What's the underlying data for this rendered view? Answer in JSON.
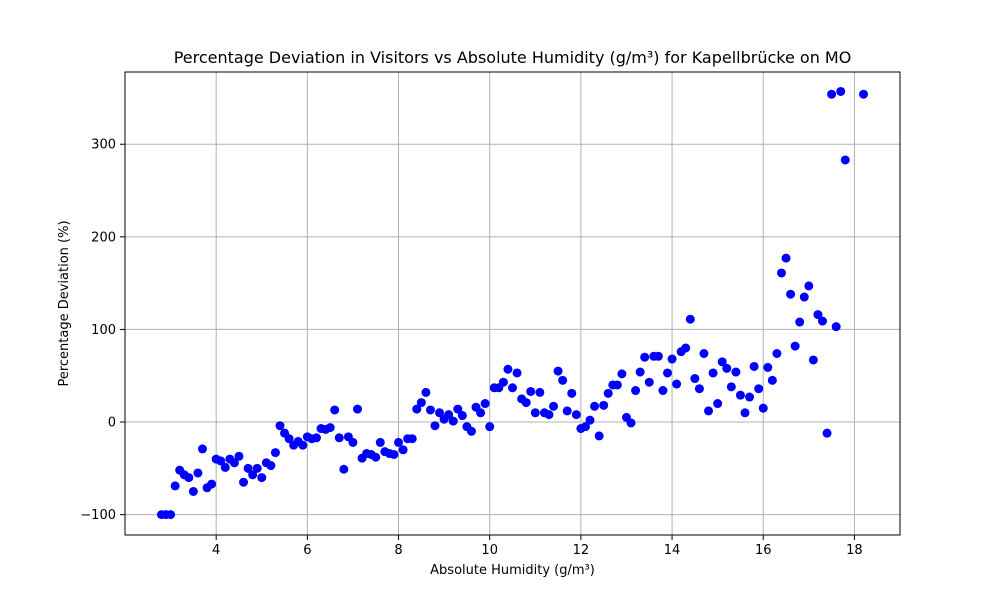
{
  "chart_data": {
    "type": "scatter",
    "title": "Percentage Deviation in Visitors vs Absolute Humidity (g/m³) for Kapellbrücke on MO",
    "xlabel": "Absolute Humidity (g/m³)",
    "ylabel": "Percentage Deviation (%)",
    "xlim": [
      2.0,
      19.0
    ],
    "ylim": [
      -122,
      378
    ],
    "xticks": [
      4,
      6,
      8,
      10,
      12,
      14,
      16,
      18
    ],
    "yticks": [
      -100,
      0,
      100,
      200,
      300
    ],
    "grid": true,
    "point_color": "#0000ff",
    "x": [
      2.8,
      2.9,
      3.0,
      3.1,
      3.2,
      3.3,
      3.4,
      3.5,
      3.6,
      3.7,
      3.8,
      3.9,
      4.0,
      4.1,
      4.2,
      4.3,
      4.4,
      4.5,
      4.6,
      4.7,
      4.8,
      4.9,
      5.0,
      5.1,
      5.2,
      5.3,
      5.4,
      5.5,
      5.6,
      5.7,
      5.8,
      5.9,
      6.0,
      6.1,
      6.2,
      6.3,
      6.4,
      6.5,
      6.6,
      6.7,
      6.8,
      6.9,
      7.0,
      7.1,
      7.2,
      7.3,
      7.4,
      7.5,
      7.6,
      7.7,
      7.8,
      7.9,
      8.0,
      8.1,
      8.2,
      8.3,
      8.4,
      8.5,
      8.6,
      8.7,
      8.8,
      8.9,
      9.0,
      9.1,
      9.2,
      9.3,
      9.4,
      9.5,
      9.6,
      9.7,
      9.8,
      9.9,
      10.0,
      10.1,
      10.2,
      10.3,
      10.4,
      10.5,
      10.6,
      10.7,
      10.8,
      10.9,
      11.0,
      11.1,
      11.2,
      11.3,
      11.4,
      11.5,
      11.6,
      11.7,
      11.8,
      11.9,
      12.0,
      12.1,
      12.2,
      12.3,
      12.4,
      12.5,
      12.6,
      12.7,
      12.8,
      12.9,
      13.0,
      13.1,
      13.2,
      13.3,
      13.4,
      13.5,
      13.6,
      13.7,
      13.8,
      13.9,
      14.0,
      14.1,
      14.2,
      14.3,
      14.4,
      14.5,
      14.6,
      14.7,
      14.8,
      14.9,
      15.0,
      15.1,
      15.2,
      15.3,
      15.4,
      15.5,
      15.6,
      15.7,
      15.8,
      15.9,
      16.0,
      16.1,
      16.2,
      16.3,
      16.4,
      16.5,
      16.6,
      16.7,
      16.8,
      16.9,
      17.0,
      17.1,
      17.2,
      17.3,
      17.4,
      17.5,
      17.6,
      17.7,
      17.8,
      18.2
    ],
    "y": [
      -100,
      -100,
      -100,
      -69,
      -52,
      -57,
      -60,
      -75,
      -55,
      -29,
      -71,
      -67,
      -40,
      -42,
      -49,
      -40,
      -44,
      -37,
      -65,
      -50,
      -57,
      -50,
      -60,
      -44,
      -47,
      -33,
      -4,
      -12,
      -18,
      -25,
      -21,
      -25,
      -16,
      -18,
      -17,
      -7,
      -8,
      -6,
      13,
      -17,
      -51,
      -16,
      -22,
      14,
      -39,
      -34,
      -35,
      -38,
      -22,
      -32,
      -34,
      -35,
      -22,
      -30,
      -18,
      -18,
      14,
      21,
      32,
      13,
      -4,
      10,
      3,
      8,
      1,
      14,
      7,
      -5,
      -10,
      16,
      10,
      20,
      -5,
      37,
      37,
      43,
      57,
      37,
      53,
      25,
      21,
      33,
      10,
      32,
      10,
      8,
      17,
      55,
      45,
      12,
      31,
      8,
      -7,
      -5,
      2,
      17,
      -15,
      18,
      31,
      40,
      40,
      52,
      5,
      -1,
      34,
      54,
      70,
      43,
      71,
      71,
      34,
      53,
      68,
      41,
      76,
      80,
      111,
      47,
      36,
      74,
      12,
      53,
      20,
      65,
      58,
      38,
      54,
      29,
      10,
      27,
      60,
      36,
      15,
      59,
      45,
      74,
      161,
      177,
      138,
      82,
      108,
      135,
      147,
      67,
      116,
      109,
      -12,
      354,
      103,
      357,
      283,
      354
    ]
  }
}
